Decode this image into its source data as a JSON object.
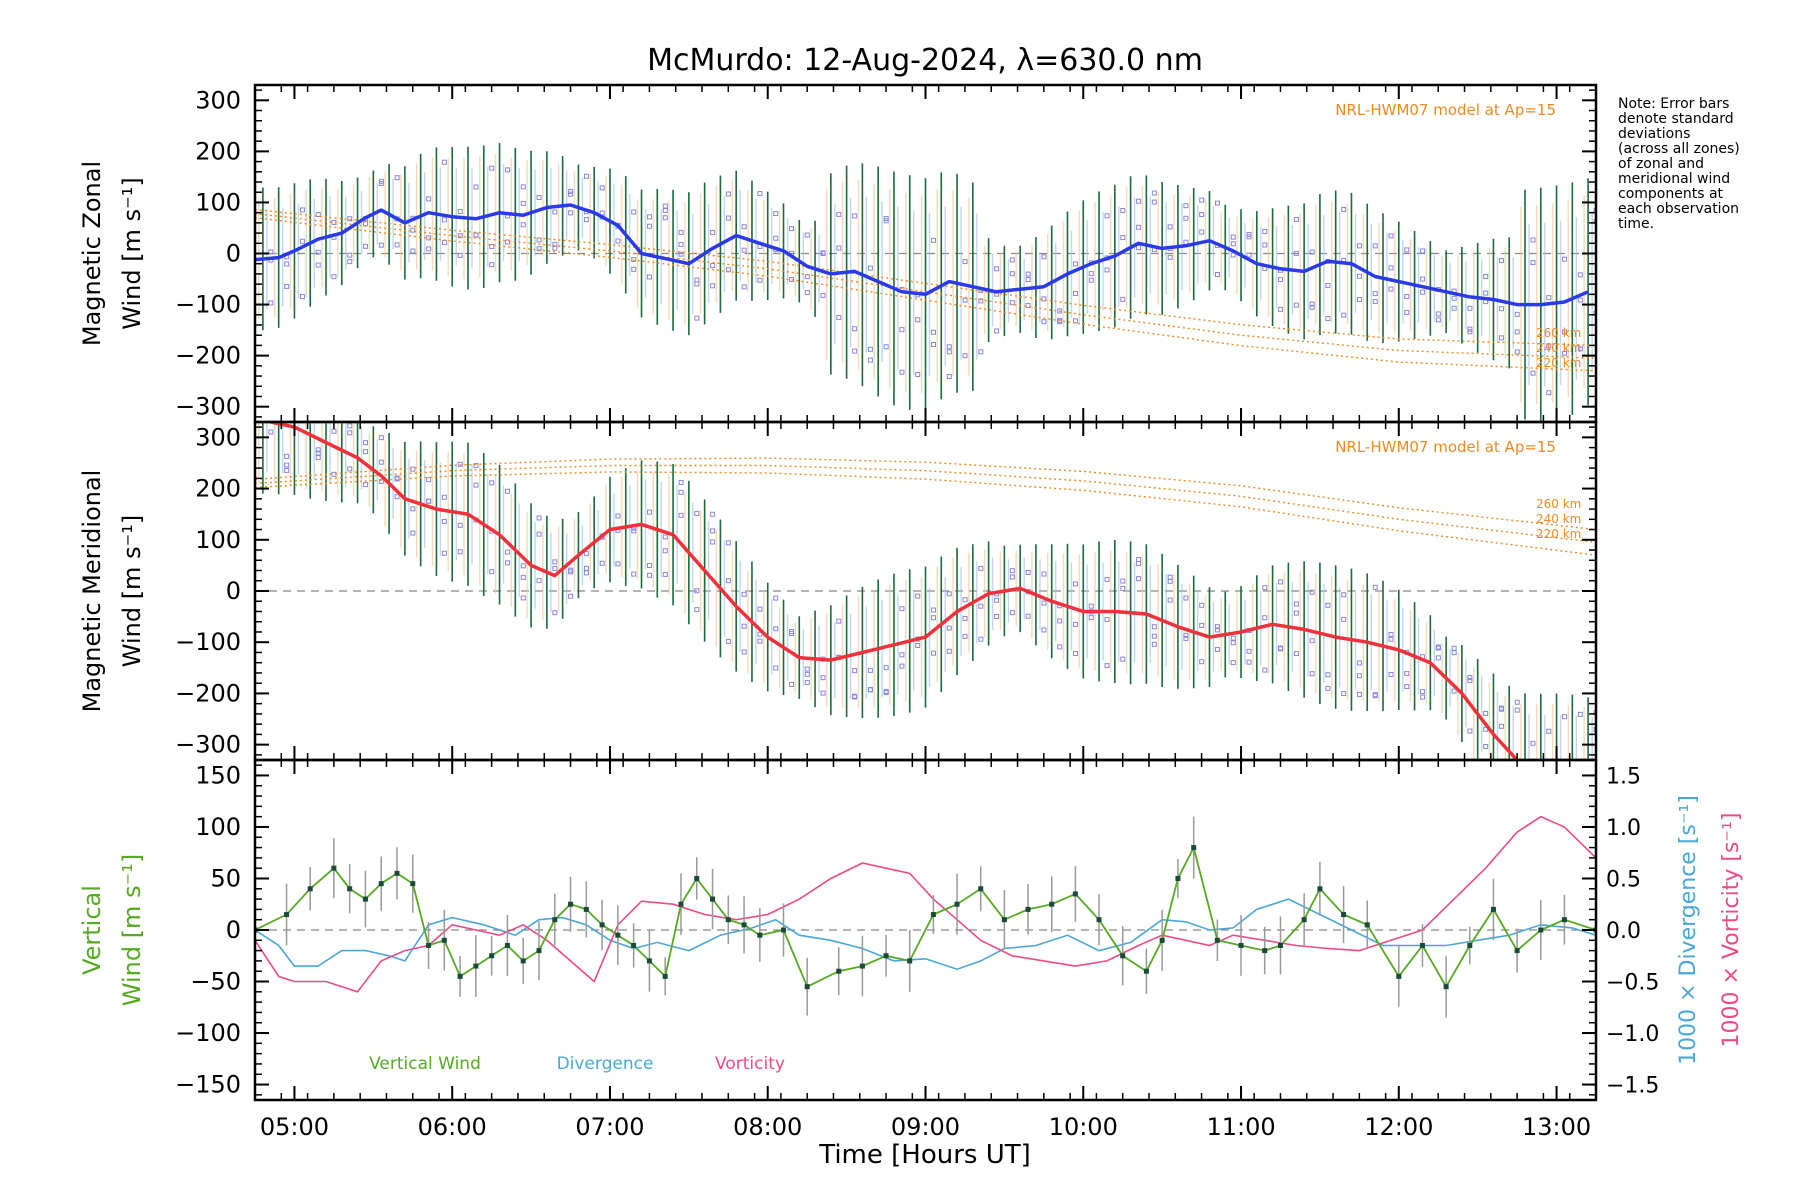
{
  "title": "McMurdo: 12-Aug-2024, λ=630.0 nm",
  "note_lines": [
    "Note: Error bars",
    "denote standard",
    "deviations",
    "(across all zones)",
    "of zonal and",
    "meridional wind",
    "components at",
    "each observation",
    "time."
  ],
  "xlabel": "Time [Hours UT]",
  "colors": {
    "zonal": "#2a3ae8",
    "meridional": "#f0303a",
    "vertical": "#55aa22",
    "divergence": "#4aa8d8",
    "vorticity": "#ee4a88",
    "model": "#f08a20",
    "errbar": "#1a6a3a",
    "zone_markers": "#8888dd"
  },
  "chart_data": [
    {
      "type": "line",
      "panel": "zonal",
      "ylabel_lines": [
        "Magnetic Zonal",
        "Wind [m s⁻¹]"
      ],
      "ylim": [
        -330,
        330
      ],
      "yticks": [
        300,
        200,
        100,
        0,
        -100,
        -200,
        -300
      ],
      "xlim": [
        4.75,
        13.25
      ],
      "xticks": [
        "05:00",
        "06:00",
        "07:00",
        "08:00",
        "09:00",
        "10:00",
        "11:00",
        "12:00",
        "13:00"
      ],
      "model_label": "NRL-HWM07 model at Ap=15",
      "model_alt_labels": [
        "260 km",
        "240 km",
        "220 km"
      ],
      "series": [
        {
          "name": "observed",
          "x": [
            4.75,
            4.9,
            5.0,
            5.15,
            5.3,
            5.45,
            5.55,
            5.7,
            5.85,
            6.0,
            6.15,
            6.3,
            6.45,
            6.6,
            6.75,
            6.9,
            7.05,
            7.2,
            7.35,
            7.5,
            7.65,
            7.8,
            7.95,
            8.1,
            8.25,
            8.4,
            8.55,
            8.7,
            8.85,
            9.0,
            9.15,
            9.3,
            9.45,
            9.6,
            9.75,
            9.9,
            10.05,
            10.2,
            10.35,
            10.5,
            10.65,
            10.8,
            10.95,
            11.1,
            11.25,
            11.4,
            11.55,
            11.7,
            11.85,
            12.0,
            12.15,
            12.3,
            12.45,
            12.6,
            12.75,
            12.9,
            13.05,
            13.2
          ],
          "y": [
            -12,
            -8,
            5,
            28,
            40,
            70,
            85,
            60,
            80,
            72,
            68,
            80,
            75,
            90,
            95,
            80,
            55,
            0,
            -10,
            -20,
            10,
            35,
            20,
            5,
            -25,
            -40,
            -35,
            -55,
            -75,
            -80,
            -55,
            -65,
            -75,
            -70,
            -65,
            -40,
            -20,
            -5,
            20,
            10,
            15,
            25,
            5,
            -20,
            -30,
            -35,
            -15,
            -20,
            -45,
            -55,
            -65,
            -75,
            -85,
            -90,
            -100,
            -100,
            -95,
            -75
          ]
        },
        {
          "name": "model",
          "x": [
            4.75,
            6.0,
            7.0,
            8.0,
            9.0,
            10.0,
            11.0,
            12.0,
            13.25
          ],
          "y": [
            78,
            35,
            5,
            -30,
            -75,
            -120,
            -160,
            -190,
            -205
          ]
        }
      ]
    },
    {
      "type": "line",
      "panel": "meridional",
      "ylabel_lines": [
        "Magnetic Meridional",
        "Wind [m s⁻¹]"
      ],
      "ylim": [
        -330,
        330
      ],
      "yticks": [
        300,
        200,
        100,
        0,
        -100,
        -200,
        -300
      ],
      "model_label": "NRL-HWM07 model at Ap=15",
      "model_alt_labels": [
        "260 km",
        "240 km",
        "220 km"
      ],
      "series": [
        {
          "name": "observed",
          "x": [
            4.85,
            5.0,
            5.2,
            5.4,
            5.55,
            5.7,
            5.9,
            6.1,
            6.3,
            6.5,
            6.65,
            6.8,
            7.0,
            7.2,
            7.4,
            7.6,
            7.8,
            8.0,
            8.2,
            8.4,
            8.6,
            8.8,
            9.0,
            9.2,
            9.4,
            9.6,
            9.8,
            10.0,
            10.2,
            10.4,
            10.6,
            10.8,
            11.0,
            11.2,
            11.4,
            11.6,
            11.8,
            12.0,
            12.2,
            12.4,
            12.6,
            12.75,
            12.85
          ],
          "y": [
            330,
            320,
            290,
            260,
            225,
            180,
            160,
            150,
            110,
            50,
            30,
            70,
            120,
            130,
            110,
            40,
            -30,
            -90,
            -130,
            -135,
            -120,
            -105,
            -90,
            -40,
            -5,
            5,
            -20,
            -40,
            -40,
            -45,
            -70,
            -90,
            -80,
            -65,
            -75,
            -90,
            -100,
            -115,
            -140,
            -200,
            -280,
            -330,
            -340
          ]
        },
        {
          "name": "model",
          "x": [
            4.75,
            6.0,
            7.0,
            8.0,
            9.0,
            10.0,
            11.0,
            12.0,
            13.25
          ],
          "y": [
            210,
            235,
            245,
            245,
            235,
            215,
            185,
            140,
            95
          ]
        }
      ]
    },
    {
      "type": "line",
      "panel": "vertical",
      "ylabel_lines": [
        "Vertical",
        "Wind [m s⁻¹]"
      ],
      "ylim": [
        -165,
        165
      ],
      "yticks": [
        150,
        100,
        50,
        0,
        -50,
        -100,
        -150
      ],
      "y2label_div": "1000 × Divergence [s⁻¹]",
      "y2label_vor": "1000 × Vorticity [s⁻¹]",
      "y2lim": [
        -1.65,
        1.65
      ],
      "y2ticks": [
        1.5,
        1.0,
        0.5,
        0.0,
        -0.5,
        -1.0,
        -1.5
      ],
      "legend": [
        "Vertical Wind",
        "Divergence",
        "Vorticity"
      ],
      "series": [
        {
          "name": "Vertical Wind",
          "x": [
            4.75,
            4.95,
            5.1,
            5.25,
            5.35,
            5.45,
            5.55,
            5.65,
            5.75,
            5.85,
            5.95,
            6.05,
            6.15,
            6.25,
            6.35,
            6.45,
            6.55,
            6.65,
            6.75,
            6.85,
            6.95,
            7.05,
            7.15,
            7.25,
            7.35,
            7.45,
            7.55,
            7.65,
            7.75,
            7.85,
            7.95,
            8.1,
            8.25,
            8.45,
            8.6,
            8.75,
            8.9,
            9.05,
            9.2,
            9.35,
            9.5,
            9.65,
            9.8,
            9.95,
            10.1,
            10.25,
            10.4,
            10.5,
            10.6,
            10.7,
            10.85,
            11.0,
            11.15,
            11.25,
            11.4,
            11.5,
            11.65,
            11.8,
            12.0,
            12.15,
            12.3,
            12.45,
            12.6,
            12.75,
            12.9,
            13.05,
            13.25
          ],
          "y": [
            0,
            15,
            40,
            60,
            40,
            30,
            45,
            55,
            45,
            -15,
            -10,
            -45,
            -35,
            -25,
            -15,
            -30,
            -20,
            10,
            25,
            20,
            5,
            -5,
            -15,
            -30,
            -45,
            25,
            50,
            30,
            10,
            5,
            -5,
            0,
            -55,
            -40,
            -35,
            -25,
            -30,
            15,
            25,
            40,
            10,
            20,
            25,
            35,
            10,
            -25,
            -40,
            -10,
            50,
            80,
            -10,
            -15,
            -20,
            -15,
            10,
            40,
            15,
            5,
            -45,
            -15,
            -55,
            -15,
            20,
            -20,
            0,
            10,
            0
          ]
        },
        {
          "name": "Divergence",
          "x": [
            4.75,
            4.9,
            5.0,
            5.15,
            5.3,
            5.45,
            5.6,
            5.7,
            5.85,
            6.0,
            6.2,
            6.4,
            6.55,
            6.7,
            6.85,
            7.0,
            7.15,
            7.3,
            7.5,
            7.7,
            7.9,
            8.05,
            8.2,
            8.4,
            8.6,
            8.8,
            9.0,
            9.2,
            9.35,
            9.5,
            9.7,
            9.9,
            10.1,
            10.3,
            10.5,
            10.65,
            10.8,
            10.95,
            11.1,
            11.3,
            11.5,
            11.7,
            11.9,
            12.1,
            12.3,
            12.5,
            12.7,
            12.9,
            13.1,
            13.25
          ],
          "y": [
            0,
            -0.15,
            -0.35,
            -0.35,
            -0.2,
            -0.2,
            -0.25,
            -0.3,
            0.05,
            0.12,
            0.05,
            -0.05,
            0.1,
            0.12,
            0.05,
            -0.1,
            -0.18,
            -0.12,
            -0.2,
            -0.05,
            0.02,
            0.1,
            -0.05,
            -0.1,
            -0.18,
            -0.3,
            -0.28,
            -0.38,
            -0.3,
            -0.18,
            -0.15,
            -0.05,
            -0.2,
            -0.12,
            0.1,
            0.08,
            0.0,
            0.02,
            0.2,
            0.3,
            0.15,
            0.0,
            -0.15,
            -0.15,
            -0.15,
            -0.1,
            -0.05,
            0.05,
            0.02,
            -0.05
          ]
        },
        {
          "name": "Vorticity",
          "x": [
            4.75,
            4.9,
            5.0,
            5.2,
            5.4,
            5.55,
            5.7,
            5.85,
            6.0,
            6.15,
            6.3,
            6.45,
            6.6,
            6.75,
            6.9,
            7.05,
            7.2,
            7.4,
            7.6,
            7.8,
            8.0,
            8.2,
            8.4,
            8.6,
            8.75,
            8.9,
            9.05,
            9.2,
            9.35,
            9.55,
            9.75,
            9.95,
            10.15,
            10.35,
            10.5,
            10.65,
            10.8,
            10.95,
            11.15,
            11.35,
            11.55,
            11.75,
            11.95,
            12.15,
            12.35,
            12.55,
            12.75,
            12.9,
            13.05,
            13.25
          ],
          "y": [
            -0.1,
            -0.45,
            -0.5,
            -0.5,
            -0.6,
            -0.3,
            -0.2,
            -0.15,
            0.05,
            0.0,
            -0.05,
            0.05,
            -0.1,
            -0.3,
            -0.5,
            0.05,
            0.28,
            0.25,
            0.15,
            0.1,
            0.15,
            0.3,
            0.5,
            0.65,
            0.6,
            0.55,
            0.3,
            0.1,
            -0.1,
            -0.25,
            -0.3,
            -0.35,
            -0.3,
            -0.15,
            -0.05,
            -0.1,
            -0.15,
            -0.05,
            -0.1,
            -0.15,
            -0.18,
            -0.2,
            -0.1,
            0.0,
            0.3,
            0.6,
            0.95,
            1.1,
            1.0,
            0.7
          ]
        }
      ]
    }
  ]
}
